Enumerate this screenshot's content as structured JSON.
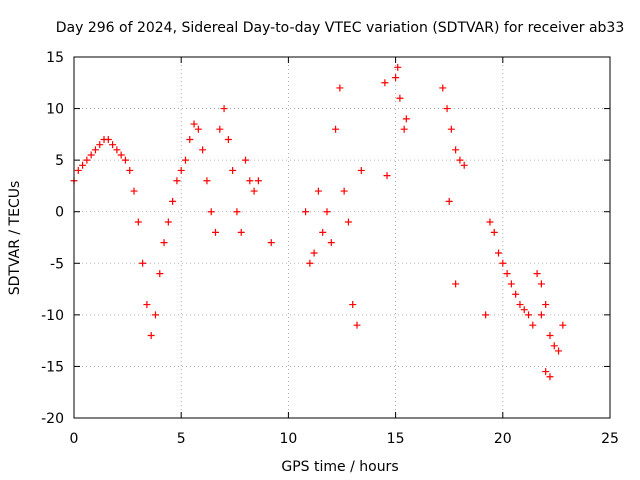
{
  "chart_data": {
    "type": "scatter",
    "title": "Day 296 of 2024, Sidereal Day-to-day VTEC variation (SDTVAR) for receiver ab33",
    "xlabel": "GPS time / hours",
    "ylabel": "SDTVAR / TECUs",
    "xlim": [
      0,
      25
    ],
    "ylim": [
      -20,
      15
    ],
    "x_ticks": [
      0,
      5,
      10,
      15,
      20,
      25
    ],
    "y_ticks": [
      -20,
      -15,
      -10,
      -5,
      0,
      5,
      10,
      15
    ],
    "grid": true,
    "marker": "+",
    "colors": {
      "series": "#ff0000",
      "axes": "#000000",
      "grid": "#a0a0a0"
    },
    "series": [
      {
        "name": "SDTVAR",
        "x": [
          0.0,
          0.2,
          0.4,
          0.6,
          0.8,
          1.0,
          1.2,
          1.4,
          1.6,
          1.8,
          2.0,
          2.2,
          2.4,
          2.6,
          2.8,
          3.0,
          3.2,
          3.4,
          3.6,
          3.8,
          4.0,
          4.2,
          4.4,
          4.6,
          4.8,
          5.0,
          5.2,
          5.4,
          5.6,
          5.8,
          6.0,
          6.2,
          6.4,
          6.6,
          6.8,
          7.0,
          7.2,
          7.4,
          7.6,
          7.8,
          8.0,
          8.2,
          8.4,
          8.6,
          9.2,
          10.8,
          11.0,
          11.2,
          11.4,
          11.6,
          11.8,
          12.0,
          12.2,
          12.4,
          12.6,
          12.8,
          13.0,
          13.2,
          13.4,
          14.5,
          14.6,
          15.0,
          15.1,
          15.2,
          15.4,
          15.5,
          17.2,
          17.4,
          17.6,
          17.8,
          18.0,
          18.2,
          17.5,
          17.8,
          19.2,
          19.4,
          19.6,
          19.8,
          20.0,
          20.2,
          20.4,
          20.6,
          20.8,
          21.0,
          21.2,
          21.4,
          21.6,
          21.8,
          22.0,
          22.2,
          22.4,
          22.6,
          22.8,
          21.8,
          22.0,
          22.2
        ],
        "y": [
          3.0,
          4.0,
          4.5,
          5.0,
          5.5,
          6.0,
          6.5,
          7.0,
          7.0,
          6.5,
          6.0,
          5.5,
          5.0,
          4.0,
          2.0,
          -1.0,
          -5.0,
          -9.0,
          -12.0,
          -10.0,
          -6.0,
          -3.0,
          -1.0,
          1.0,
          3.0,
          4.0,
          5.0,
          7.0,
          8.5,
          8.0,
          6.0,
          3.0,
          0.0,
          -2.0,
          8.0,
          10.0,
          7.0,
          4.0,
          0.0,
          -2.0,
          5.0,
          3.0,
          2.0,
          3.0,
          -3.0,
          0.0,
          -5.0,
          -4.0,
          2.0,
          -2.0,
          0.0,
          -3.0,
          8.0,
          12.0,
          2.0,
          -1.0,
          -9.0,
          -11.0,
          4.0,
          12.5,
          3.5,
          13.0,
          14.0,
          11.0,
          8.0,
          9.0,
          12.0,
          10.0,
          8.0,
          6.0,
          5.0,
          4.5,
          1.0,
          -7.0,
          -10.0,
          -1.0,
          -2.0,
          -4.0,
          -5.0,
          -6.0,
          -7.0,
          -8.0,
          -9.0,
          -9.5,
          -10.0,
          -11.0,
          -6.0,
          -7.0,
          -9.0,
          -12.0,
          -13.0,
          -13.5,
          -11.0,
          -10.0,
          -15.5,
          -16.0
        ]
      }
    ]
  }
}
